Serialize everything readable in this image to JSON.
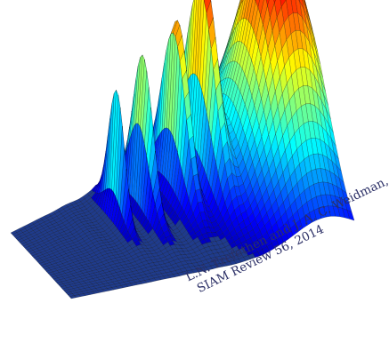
{
  "chart_data": {
    "type": "surface",
    "title": "",
    "xlabel": "",
    "ylabel": "",
    "zlabel": "",
    "grid": false,
    "colormap": "jet",
    "floor_color": "#1f3b8c",
    "surface_description_values": {
      "peaks": [
        {
          "label": "spike 1",
          "height": 0.58
        },
        {
          "label": "spike 2",
          "height": 0.63
        },
        {
          "label": "spike 3",
          "height": 0.77
        },
        {
          "label": "spike 4",
          "height": 0.8
        },
        {
          "label": "ridge",
          "height": 1.0
        }
      ]
    },
    "annotation": {
      "line1": "L.N. Trefethen and J. A. C. Weidman,",
      "line2": "SIAM Review 56, 2014"
    }
  }
}
